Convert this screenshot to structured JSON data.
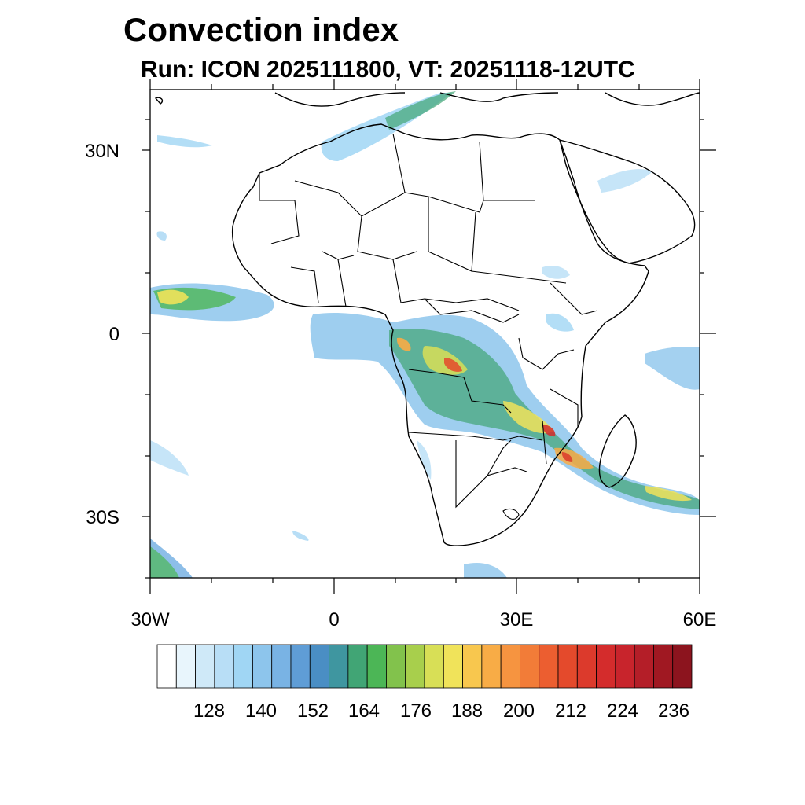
{
  "map": {
    "title": "Convection index",
    "subtitle": "Run: ICON 2025111800,  VT: 20251118-12UTC",
    "lat_ticks": [
      {
        "value": 30,
        "label": "30N"
      },
      {
        "value": 0,
        "label": "0"
      },
      {
        "value": -30,
        "label": "30S"
      }
    ],
    "lon_ticks": [
      {
        "value": -30,
        "label": "30W"
      },
      {
        "value": 0,
        "label": "0"
      },
      {
        "value": 30,
        "label": "30E"
      },
      {
        "value": 60,
        "label": "60E"
      }
    ],
    "extent": {
      "lon": [
        -30,
        60
      ],
      "lat": [
        -40,
        40
      ]
    }
  },
  "colorbar": {
    "labels": [
      "128",
      "140",
      "152",
      "164",
      "176",
      "188",
      "200",
      "212",
      "224",
      "236"
    ],
    "colors": [
      "#ffffff",
      "#e8f5fc",
      "#cfe9f8",
      "#b8def6",
      "#a0d6f4",
      "#8dc5ec",
      "#79b3e4",
      "#5f9dd6",
      "#4a8ec4",
      "#3f96a0",
      "#41a575",
      "#4cb656",
      "#82c24c",
      "#a8cf4c",
      "#d8df56",
      "#f0e35a",
      "#f8c74e",
      "#f8ac46",
      "#f69440",
      "#f27c38",
      "#ec5e30",
      "#e44a2c",
      "#dc3a2c",
      "#d42c2c",
      "#c8242c",
      "#b41e28",
      "#a01822",
      "#8c141e"
    ]
  }
}
